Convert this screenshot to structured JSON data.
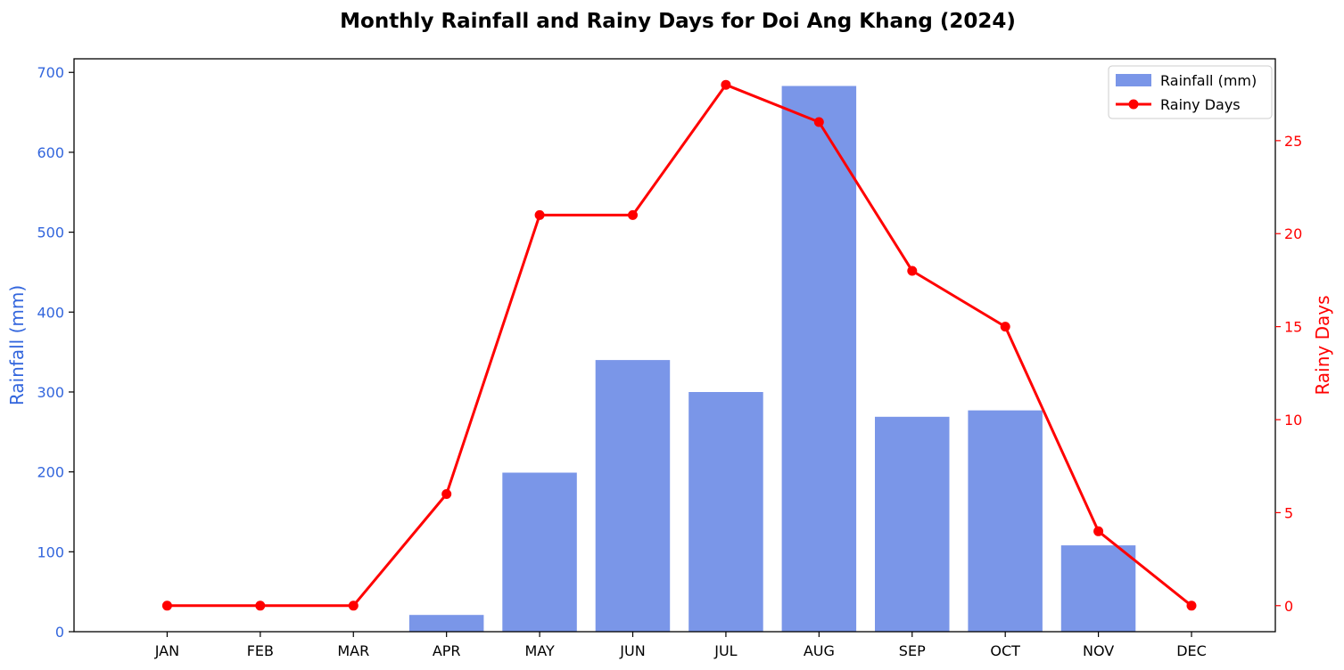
{
  "chart_data": {
    "type": "bar+line",
    "title": "Monthly Rainfall and Rainy Days for Doi Ang Khang (2024)",
    "categories": [
      "JAN",
      "FEB",
      "MAR",
      "APR",
      "MAY",
      "JUN",
      "JUL",
      "AUG",
      "SEP",
      "OCT",
      "NOV",
      "DEC"
    ],
    "series": [
      {
        "name": "Rainfall (mm)",
        "type": "bar",
        "axis": "left",
        "color": "#7a96e8",
        "values": [
          0,
          0,
          0,
          21,
          199,
          340,
          300,
          683,
          269,
          277,
          108,
          0
        ]
      },
      {
        "name": "Rainy Days",
        "type": "line",
        "axis": "right",
        "color": "#ff0000",
        "values": [
          0,
          0,
          0,
          6,
          21,
          21,
          28,
          26,
          18,
          15,
          4,
          0
        ]
      }
    ],
    "y_left": {
      "label": "Rainfall (mm)",
      "color": "#3366dd",
      "lim": [
        0,
        717
      ],
      "ticks": [
        0,
        100,
        200,
        300,
        400,
        500,
        600,
        700
      ]
    },
    "y_right": {
      "label": "Rainy Days",
      "color": "#ff0000",
      "lim": [
        -1.4,
        29.4
      ],
      "ticks": [
        0,
        5,
        10,
        15,
        20,
        25
      ]
    },
    "legend": {
      "placement": "top-right",
      "entries": [
        "Rainfall (mm)",
        "Rainy Days"
      ]
    },
    "grid": false
  }
}
